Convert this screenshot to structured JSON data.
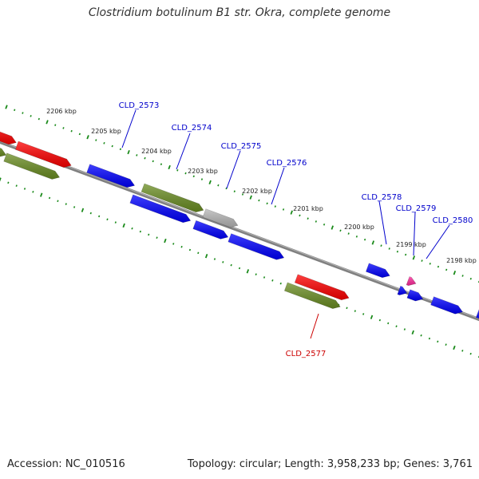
{
  "title": "Clostridium botulinum B1 str. Okra, complete genome",
  "footer": {
    "accession": "Accession: NC_010516",
    "stats": "Topology: circular; Length: 3,958,233 bp; Genes: 3,761"
  },
  "colors": {
    "background": "#ffffff",
    "backbone": "#808080",
    "tick": "#1a8a1a",
    "gene_red": "#ff0000",
    "gene_green": "#6b8e23",
    "gene_blue": "#0000ff",
    "gene_gray": "#b8b8b8",
    "gene_pink": "#ff2a9c",
    "label_blue": "#0000cc",
    "label_red": "#cc0000"
  },
  "scale_labels": [
    "2206 kbp",
    "2205 kbp",
    "2204 kbp",
    "2203 kbp",
    "2202 kbp",
    "2201 kbp",
    "2200 kbp",
    "2199 kbp",
    "2198 kbp"
  ],
  "gene_labels": [
    {
      "name": "CLD_2573",
      "color": "blue"
    },
    {
      "name": "CLD_2574",
      "color": "blue"
    },
    {
      "name": "CLD_2575",
      "color": "blue"
    },
    {
      "name": "CLD_2576",
      "color": "blue"
    },
    {
      "name": "CLD_2577",
      "color": "red"
    },
    {
      "name": "CLD_2578",
      "color": "blue"
    },
    {
      "name": "CLD_2579",
      "color": "blue"
    },
    {
      "name": "CLD_2580",
      "color": "blue"
    }
  ]
}
